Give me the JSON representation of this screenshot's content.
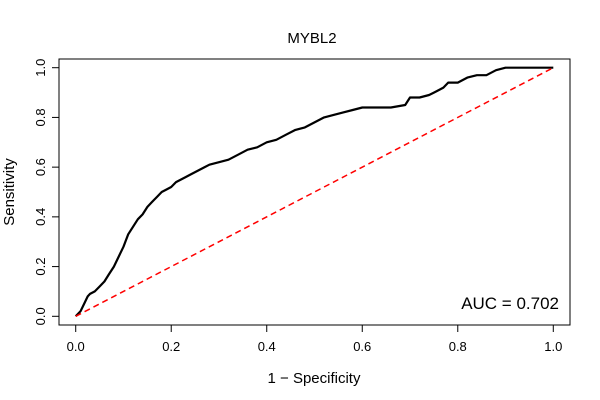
{
  "chart_data": {
    "type": "line",
    "title": "MYBL2",
    "xlabel": "1 − Specificity",
    "ylabel": "Sensitivity",
    "xlim": [
      -0.035,
      1.035
    ],
    "ylim": [
      -0.035,
      1.035
    ],
    "x_ticks": [
      0.0,
      0.2,
      0.4,
      0.6,
      0.8,
      1.0
    ],
    "x_tick_labels": [
      "0.0",
      "0.2",
      "0.4",
      "0.6",
      "0.8",
      "1.0"
    ],
    "y_ticks": [
      0.0,
      0.2,
      0.4,
      0.6,
      0.8,
      1.0
    ],
    "y_tick_labels": [
      "0.0",
      "0.2",
      "0.4",
      "0.6",
      "0.8",
      "1.0"
    ],
    "grid": false,
    "annotation": "AUC = 0.702",
    "series": [
      {
        "color": "#000000",
        "style": "solid",
        "x": [
          0.0,
          0.005,
          0.01,
          0.015,
          0.02,
          0.025,
          0.03,
          0.04,
          0.05,
          0.06,
          0.07,
          0.08,
          0.09,
          0.1,
          0.11,
          0.12,
          0.13,
          0.14,
          0.15,
          0.16,
          0.17,
          0.18,
          0.19,
          0.2,
          0.21,
          0.22,
          0.23,
          0.24,
          0.25,
          0.26,
          0.27,
          0.28,
          0.3,
          0.32,
          0.34,
          0.36,
          0.38,
          0.4,
          0.42,
          0.44,
          0.46,
          0.48,
          0.5,
          0.52,
          0.54,
          0.56,
          0.58,
          0.6,
          0.63,
          0.66,
          0.69,
          0.7,
          0.72,
          0.74,
          0.75,
          0.76,
          0.77,
          0.78,
          0.8,
          0.82,
          0.84,
          0.86,
          0.88,
          0.9,
          0.95,
          1.0
        ],
        "y": [
          0.0,
          0.01,
          0.02,
          0.04,
          0.06,
          0.08,
          0.09,
          0.1,
          0.12,
          0.14,
          0.17,
          0.2,
          0.24,
          0.28,
          0.33,
          0.36,
          0.39,
          0.41,
          0.44,
          0.46,
          0.48,
          0.5,
          0.51,
          0.52,
          0.54,
          0.55,
          0.56,
          0.57,
          0.58,
          0.59,
          0.6,
          0.61,
          0.62,
          0.63,
          0.65,
          0.67,
          0.68,
          0.7,
          0.71,
          0.73,
          0.75,
          0.76,
          0.78,
          0.8,
          0.81,
          0.82,
          0.83,
          0.84,
          0.84,
          0.84,
          0.85,
          0.88,
          0.88,
          0.89,
          0.9,
          0.91,
          0.92,
          0.94,
          0.94,
          0.96,
          0.97,
          0.97,
          0.99,
          1.0,
          1.0,
          1.0
        ]
      },
      {
        "color": "#ff0000",
        "style": "dashed",
        "x": [
          0.0,
          1.0
        ],
        "y": [
          0.0,
          1.0
        ]
      }
    ]
  }
}
